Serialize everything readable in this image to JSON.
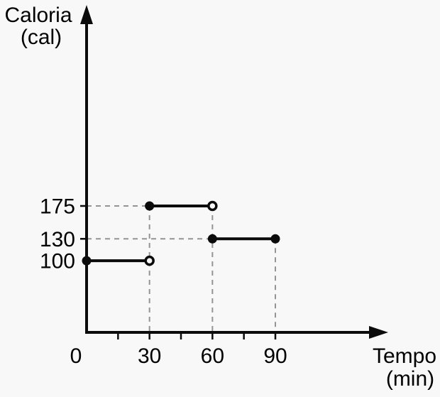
{
  "chart_data": {
    "type": "line",
    "subtype": "step-function",
    "title": "",
    "ylabel": "Caloria",
    "ylabel_unit": "(cal)",
    "xlabel": "Tempo",
    "xlabel_unit": "(min)",
    "x_ticks_labeled": [
      0,
      30,
      60,
      90
    ],
    "x_ticks_minor": [
      15,
      45,
      75
    ],
    "y_ticks_labeled": [
      175,
      130,
      100
    ],
    "y_tick_marks": [
      175,
      130
    ],
    "xlim": [
      0,
      144
    ],
    "ylim": [
      0,
      450
    ],
    "legend": "none",
    "grid": "none (dashed guide lines only)",
    "segments": [
      {
        "x_start": 0,
        "x_end": 30,
        "y": 100,
        "start_point": "closed",
        "end_point": "open"
      },
      {
        "x_start": 30,
        "x_end": 60,
        "y": 175,
        "start_point": "closed",
        "end_point": "open"
      },
      {
        "x_start": 60,
        "x_end": 90,
        "y": 130,
        "start_point": "closed",
        "end_point": "closed"
      }
    ],
    "dashed_guides": {
      "horizontal": [
        {
          "y": 175,
          "x_from": 0,
          "x_to": 30
        },
        {
          "y": 130,
          "x_from": 0,
          "x_to": 60
        }
      ],
      "vertical": [
        {
          "x": 30,
          "y_from": 175,
          "y_to": 0
        },
        {
          "x": 60,
          "y_from": 175,
          "y_to": 0
        },
        {
          "x": 90,
          "y_from": 130,
          "y_to": 0
        }
      ]
    },
    "colors": {
      "line": "#0b0b0b",
      "dash": "#949494",
      "text": "#000000",
      "background": "#f8f8f8"
    }
  }
}
